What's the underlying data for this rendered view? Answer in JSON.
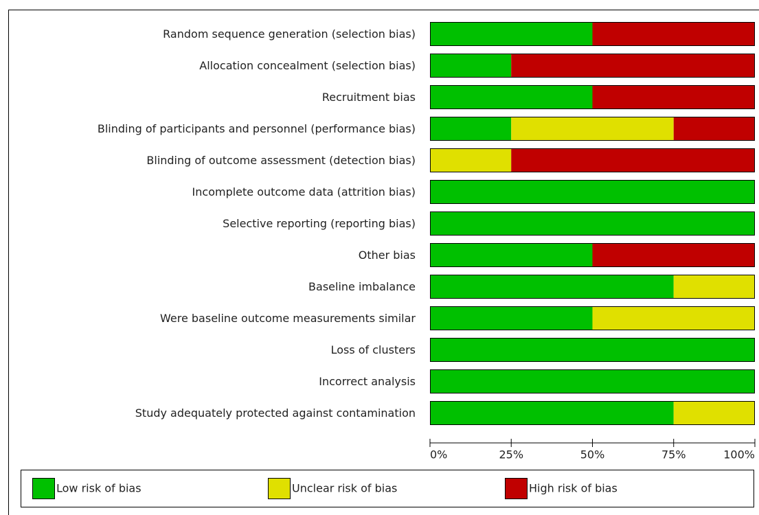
{
  "chart_data": {
    "type": "bar",
    "orientation": "horizontal",
    "stacked": true,
    "categories": [
      "Random sequence generation (selection bias)",
      "Allocation concealment (selection bias)",
      "Recruitment bias",
      "Blinding of participants and personnel (performance bias)",
      "Blinding of outcome assessment (detection bias)",
      "Incomplete outcome data (attrition bias)",
      "Selective reporting (reporting bias)",
      "Other bias",
      "Baseline imbalance",
      "Were baseline outcome measurements similar",
      "Loss of clusters",
      "Incorrect analysis",
      "Study adequately protected against contamination"
    ],
    "series": [
      {
        "name": "Low risk of bias",
        "color": "#00c000",
        "values": [
          50,
          25,
          50,
          25,
          0,
          100,
          100,
          50,
          75,
          50,
          100,
          100,
          75
        ]
      },
      {
        "name": "Unclear risk of bias",
        "color": "#e0e000",
        "values": [
          0,
          0,
          0,
          50,
          25,
          0,
          0,
          0,
          25,
          50,
          0,
          0,
          25
        ]
      },
      {
        "name": "High risk of bias",
        "color": "#c00000",
        "values": [
          50,
          75,
          50,
          25,
          75,
          0,
          0,
          50,
          0,
          0,
          0,
          0,
          0
        ]
      }
    ],
    "xlim": [
      0,
      100
    ],
    "xticks": [
      {
        "value": 0,
        "label": "0%"
      },
      {
        "value": 25,
        "label": "25%"
      },
      {
        "value": 50,
        "label": "50%"
      },
      {
        "value": 75,
        "label": "75%"
      },
      {
        "value": 100,
        "label": "100%"
      }
    ],
    "legend": "bottom"
  }
}
